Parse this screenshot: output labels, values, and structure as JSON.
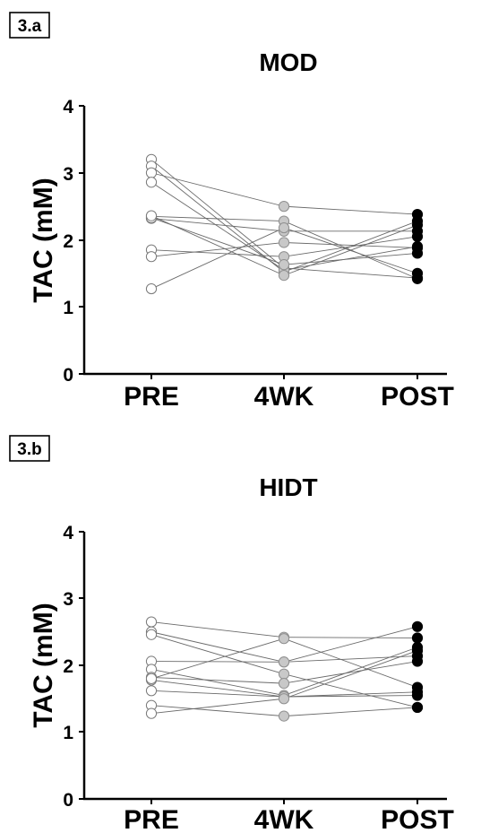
{
  "chart_data": [
    {
      "type": "scatter",
      "panel_label": "3.a",
      "title": "MOD",
      "xlabel": "",
      "ylabel": "TAC (mM)",
      "categories": [
        "PRE",
        "4WK",
        "POST"
      ],
      "ylim": [
        0,
        4
      ],
      "yticks": [
        "0",
        "1",
        "2",
        "3",
        "4"
      ],
      "grid": false,
      "marker_colors": {
        "PRE": "#ffffff",
        "4WK": "#c8c8c8",
        "POST": "#000000"
      },
      "subjects": [
        [
          3.2,
          1.58,
          1.43
        ],
        [
          3.1,
          1.52,
          2.28
        ],
        [
          3.0,
          2.5,
          2.38
        ],
        [
          2.86,
          1.55,
          1.9
        ],
        [
          2.35,
          2.28,
          1.42
        ],
        [
          2.32,
          2.13,
          2.13
        ],
        [
          1.85,
          1.75,
          2.05
        ],
        [
          1.75,
          1.96,
          1.88
        ],
        [
          1.27,
          2.18,
          1.5
        ],
        [
          2.33,
          1.63,
          1.8
        ],
        [
          2.36,
          1.47,
          2.22
        ]
      ]
    },
    {
      "type": "scatter",
      "panel_label": "3.b",
      "title": "HIDT",
      "xlabel": "",
      "ylabel": "TAC (mM)",
      "categories": [
        "PRE",
        "4WK",
        "POST"
      ],
      "ylim": [
        0,
        4
      ],
      "yticks": [
        "0",
        "1",
        "2",
        "3",
        "4"
      ],
      "grid": false,
      "marker_colors": {
        "PRE": "#ffffff",
        "4WK": "#c8c8c8",
        "POST": "#000000"
      },
      "subjects": [
        [
          2.65,
          2.42,
          2.41
        ],
        [
          2.5,
          2.05,
          2.58
        ],
        [
          2.46,
          1.87,
          1.37
        ],
        [
          2.06,
          2.05,
          2.14
        ],
        [
          1.94,
          1.55,
          2.27
        ],
        [
          1.82,
          1.73,
          2.06
        ],
        [
          1.78,
          1.53,
          1.55
        ],
        [
          1.62,
          1.53,
          1.6
        ],
        [
          1.4,
          1.24,
          1.37
        ],
        [
          1.28,
          1.5,
          2.22
        ],
        [
          1.8,
          2.4,
          1.67
        ]
      ]
    }
  ]
}
